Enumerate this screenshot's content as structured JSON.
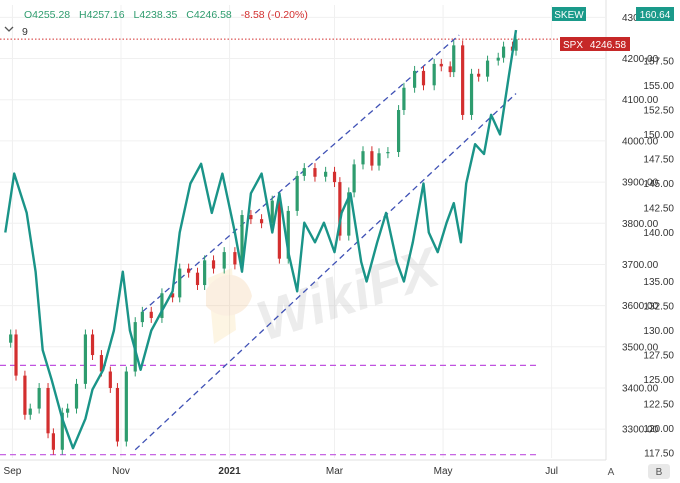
{
  "ohlc_header": {
    "open": "O4255.28",
    "high": "H4257.16",
    "low": "L4238.35",
    "close": "C4246.58",
    "change": "-8.58 (-0.20%)",
    "indicator_count": "9"
  },
  "badges": {
    "skew_label": "SKEW",
    "skew_value": "160.64",
    "spx_label": "SPX",
    "spx_value": "4246.58"
  },
  "colors": {
    "candle_up": "#2e9c6e",
    "candle_down": "#d32f2f",
    "skew_line": "#1a9488",
    "channel_line": "#3f51b5",
    "support_line": "#c052e0",
    "skew_badge": "#1a9a8a",
    "spx_badge": "#c62828"
  },
  "icons": {
    "collapse": "chevron-down-icon",
    "watermark": "wikifx-logo-icon"
  },
  "watermark": {
    "text": "WikiFX"
  },
  "chart_data": {
    "type": "candlestick",
    "x_labels": [
      "Sep",
      "Nov",
      "2021",
      "Mar",
      "May",
      "Jul"
    ],
    "y_left": {
      "label": "SPX",
      "ticks": [
        3300,
        3400,
        3500,
        3600,
        3700,
        3800,
        3900,
        4000,
        4100,
        4200,
        4300
      ],
      "range": [
        3230,
        4330
      ]
    },
    "y_right": {
      "label": "SKEW",
      "ticks": [
        117.5,
        120.0,
        122.5,
        125.0,
        127.5,
        130.0,
        132.5,
        135.0,
        140.0,
        142.5,
        145.0,
        147.5,
        150.0,
        152.5,
        155.0,
        157.5
      ],
      "range": [
        117.0,
        163.2
      ]
    },
    "axis_buttons": [
      "A",
      "B"
    ],
    "spx_close_points": [
      {
        "d": "2020-08-31",
        "c": 3530
      },
      {
        "d": "2020-09-03",
        "c": 3430
      },
      {
        "d": "2020-09-08",
        "c": 3335
      },
      {
        "d": "2020-09-11",
        "c": 3350
      },
      {
        "d": "2020-09-16",
        "c": 3400
      },
      {
        "d": "2020-09-21",
        "c": 3290
      },
      {
        "d": "2020-09-24",
        "c": 3250
      },
      {
        "d": "2020-09-29",
        "c": 3340
      },
      {
        "d": "2020-10-02",
        "c": 3350
      },
      {
        "d": "2020-10-07",
        "c": 3410
      },
      {
        "d": "2020-10-12",
        "c": 3530
      },
      {
        "d": "2020-10-16",
        "c": 3480
      },
      {
        "d": "2020-10-21",
        "c": 3440
      },
      {
        "d": "2020-10-26",
        "c": 3400
      },
      {
        "d": "2020-10-30",
        "c": 3270
      },
      {
        "d": "2020-11-04",
        "c": 3440
      },
      {
        "d": "2020-11-09",
        "c": 3560
      },
      {
        "d": "2020-11-13",
        "c": 3585
      },
      {
        "d": "2020-11-18",
        "c": 3570
      },
      {
        "d": "2020-11-24",
        "c": 3630
      },
      {
        "d": "2020-11-30",
        "c": 3620
      },
      {
        "d": "2020-12-04",
        "c": 3690
      },
      {
        "d": "2020-12-09",
        "c": 3680
      },
      {
        "d": "2020-12-14",
        "c": 3650
      },
      {
        "d": "2020-12-18",
        "c": 3710
      },
      {
        "d": "2020-12-23",
        "c": 3690
      },
      {
        "d": "2020-12-29",
        "c": 3730
      },
      {
        "d": "2021-01-04",
        "c": 3700
      },
      {
        "d": "2021-01-08",
        "c": 3820
      },
      {
        "d": "2021-01-13",
        "c": 3810
      },
      {
        "d": "2021-01-19",
        "c": 3800
      },
      {
        "d": "2021-01-25",
        "c": 3855
      },
      {
        "d": "2021-01-29",
        "c": 3714
      },
      {
        "d": "2021-02-03",
        "c": 3830
      },
      {
        "d": "2021-02-08",
        "c": 3915
      },
      {
        "d": "2021-02-12",
        "c": 3934
      },
      {
        "d": "2021-02-18",
        "c": 3913
      },
      {
        "d": "2021-02-24",
        "c": 3925
      },
      {
        "d": "2021-03-01",
        "c": 3900
      },
      {
        "d": "2021-03-04",
        "c": 3770
      },
      {
        "d": "2021-03-09",
        "c": 3875
      },
      {
        "d": "2021-03-12",
        "c": 3943
      },
      {
        "d": "2021-03-17",
        "c": 3975
      },
      {
        "d": "2021-03-22",
        "c": 3940
      },
      {
        "d": "2021-03-26",
        "c": 3970
      },
      {
        "d": "2021-03-31",
        "c": 3973
      },
      {
        "d": "2021-04-06",
        "c": 4075
      },
      {
        "d": "2021-04-09",
        "c": 4129
      },
      {
        "d": "2021-04-15",
        "c": 4170
      },
      {
        "d": "2021-04-20",
        "c": 4135
      },
      {
        "d": "2021-04-26",
        "c": 4187
      },
      {
        "d": "2021-04-30",
        "c": 4181
      },
      {
        "d": "2021-05-05",
        "c": 4167
      },
      {
        "d": "2021-05-07",
        "c": 4232
      },
      {
        "d": "2021-05-12",
        "c": 4063
      },
      {
        "d": "2021-05-17",
        "c": 4163
      },
      {
        "d": "2021-05-21",
        "c": 4156
      },
      {
        "d": "2021-05-26",
        "c": 4195
      },
      {
        "d": "2021-06-01",
        "c": 4202
      },
      {
        "d": "2021-06-04",
        "c": 4229
      },
      {
        "d": "2021-06-09",
        "c": 4219
      },
      {
        "d": "2021-06-11",
        "c": 4247
      }
    ],
    "skew_points": [
      {
        "d": "2020-08-28",
        "v": 140
      },
      {
        "d": "2020-09-02",
        "v": 146
      },
      {
        "d": "2020-09-09",
        "v": 142
      },
      {
        "d": "2020-09-14",
        "v": 136
      },
      {
        "d": "2020-09-18",
        "v": 128
      },
      {
        "d": "2020-09-23",
        "v": 125
      },
      {
        "d": "2020-09-29",
        "v": 121
      },
      {
        "d": "2020-10-05",
        "v": 118
      },
      {
        "d": "2020-10-12",
        "v": 121
      },
      {
        "d": "2020-10-16",
        "v": 124
      },
      {
        "d": "2020-10-22",
        "v": 126
      },
      {
        "d": "2020-10-28",
        "v": 130
      },
      {
        "d": "2020-11-02",
        "v": 136
      },
      {
        "d": "2020-11-06",
        "v": 130
      },
      {
        "d": "2020-11-12",
        "v": 126
      },
      {
        "d": "2020-11-18",
        "v": 130
      },
      {
        "d": "2020-11-24",
        "v": 132
      },
      {
        "d": "2020-11-30",
        "v": 134
      },
      {
        "d": "2020-12-04",
        "v": 140
      },
      {
        "d": "2020-12-10",
        "v": 145
      },
      {
        "d": "2020-12-16",
        "v": 147
      },
      {
        "d": "2020-12-22",
        "v": 142
      },
      {
        "d": "2020-12-28",
        "v": 146
      },
      {
        "d": "2021-01-04",
        "v": 140
      },
      {
        "d": "2021-01-08",
        "v": 136
      },
      {
        "d": "2021-01-13",
        "v": 144
      },
      {
        "d": "2021-01-19",
        "v": 146
      },
      {
        "d": "2021-01-25",
        "v": 140
      },
      {
        "d": "2021-01-29",
        "v": 144
      },
      {
        "d": "2021-02-03",
        "v": 138
      },
      {
        "d": "2021-02-08",
        "v": 134
      },
      {
        "d": "2021-02-12",
        "v": 141
      },
      {
        "d": "2021-02-18",
        "v": 139
      },
      {
        "d": "2021-02-23",
        "v": 141
      },
      {
        "d": "2021-03-01",
        "v": 138
      },
      {
        "d": "2021-03-05",
        "v": 142
      },
      {
        "d": "2021-03-10",
        "v": 144
      },
      {
        "d": "2021-03-16",
        "v": 137
      },
      {
        "d": "2021-03-19",
        "v": 135
      },
      {
        "d": "2021-03-25",
        "v": 139
      },
      {
        "d": "2021-03-30",
        "v": 142
      },
      {
        "d": "2021-04-05",
        "v": 137
      },
      {
        "d": "2021-04-09",
        "v": 135
      },
      {
        "d": "2021-04-14",
        "v": 139
      },
      {
        "d": "2021-04-20",
        "v": 145
      },
      {
        "d": "2021-04-23",
        "v": 140
      },
      {
        "d": "2021-04-28",
        "v": 138
      },
      {
        "d": "2021-05-03",
        "v": 141
      },
      {
        "d": "2021-05-07",
        "v": 143
      },
      {
        "d": "2021-05-11",
        "v": 139
      },
      {
        "d": "2021-05-14",
        "v": 145
      },
      {
        "d": "2021-05-19",
        "v": 149
      },
      {
        "d": "2021-05-24",
        "v": 148
      },
      {
        "d": "2021-05-28",
        "v": 152
      },
      {
        "d": "2021-06-02",
        "v": 150
      },
      {
        "d": "2021-06-07",
        "v": 156
      },
      {
        "d": "2021-06-11",
        "v": 160.64
      }
    ],
    "channel_lines": [
      {
        "from": {
          "d": "2020-11-13",
          "y": 3585
        },
        "to": {
          "d": "2021-05-10",
          "y": 4257
        }
      },
      {
        "from": {
          "d": "2020-11-09",
          "y": 3250
        },
        "to": {
          "d": "2021-06-11",
          "y": 4115
        }
      }
    ],
    "support_lines": [
      3455,
      3238
    ],
    "last_price_line": 4247
  }
}
